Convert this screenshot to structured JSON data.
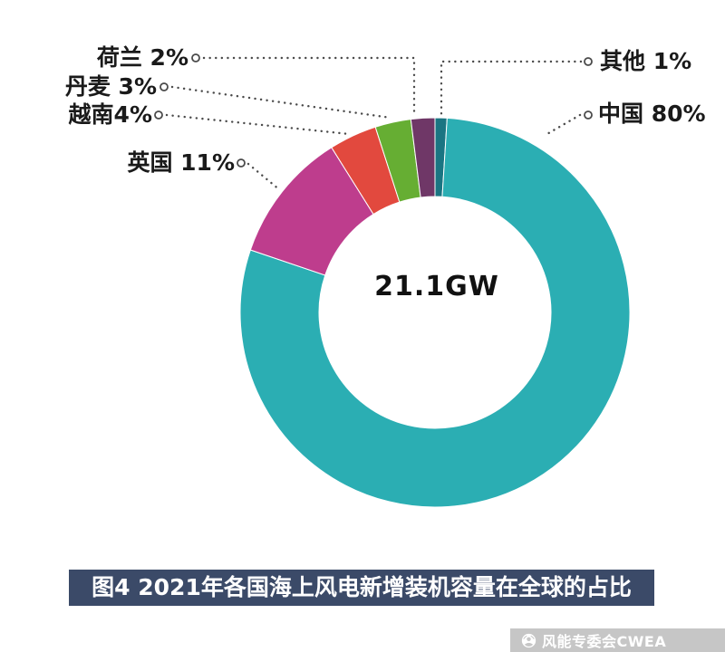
{
  "chart_data": {
    "type": "pie",
    "donut": true,
    "clockwise_from_top": true,
    "title": "图4 2021年各国海上风电新增装机容量在全球的占比",
    "center_label": "21.1GW",
    "unit": "%",
    "legend_position": "callouts",
    "segments": [
      {
        "label": "其他",
        "value": 1,
        "color": "#1A7582",
        "callout": "其他 1%"
      },
      {
        "label": "中国",
        "value": 80,
        "color": "#2BAEB3",
        "callout": "中国 80%"
      },
      {
        "label": "英国",
        "value": 11,
        "color": "#BE3D8D",
        "callout": "英国 11%"
      },
      {
        "label": "越南",
        "value": 4,
        "color": "#E2493E",
        "callout": "越南4%"
      },
      {
        "label": "丹麦",
        "value": 3,
        "color": "#66AE33",
        "callout": "丹麦 3%"
      },
      {
        "label": "荷兰",
        "value": 2,
        "color": "#6F3767",
        "callout": "荷兰 2%"
      }
    ]
  },
  "caption": {
    "text": "图4 2021年各国海上风电新增装机容量在全球的占比",
    "background": "#3B4A68"
  },
  "footer": {
    "brand": "风能专委会CWEA",
    "icon": "wechat-official-icon",
    "background": "#C6C6C6"
  }
}
